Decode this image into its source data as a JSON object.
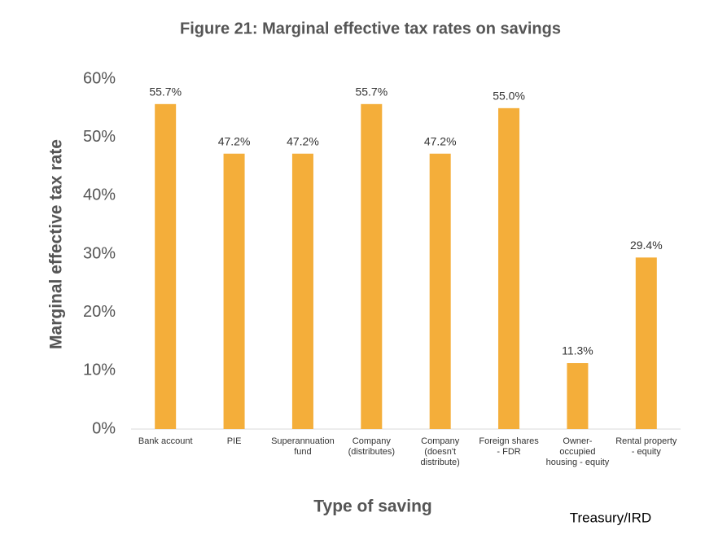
{
  "chart_data": {
    "type": "bar",
    "title": "Figure 21: Marginal effective tax rates on savings",
    "y_label": "Marginal effective tax rate",
    "x_label": "Type of saving",
    "source": "Treasury/IRD",
    "categories": [
      "Bank account",
      "PIE",
      "Superannuation fund",
      "Company (distributes)",
      "Company (doesn't distribute)",
      "Foreign shares - FDR",
      "Owner-occupied housing - equity",
      "Rental property - equity"
    ],
    "values": [
      55.7,
      47.2,
      47.2,
      55.7,
      47.2,
      55.0,
      11.3,
      29.4
    ],
    "value_labels": [
      "55.7%",
      "47.2%",
      "47.2%",
      "55.7%",
      "47.2%",
      "55.0%",
      "11.3%",
      "29.4%"
    ],
    "color": "#f4ae3a",
    "ylim": [
      0,
      60
    ],
    "yticks": [
      {
        "value": 0,
        "label": "0%"
      },
      {
        "value": 10,
        "label": "10%"
      },
      {
        "value": 20,
        "label": "20%"
      },
      {
        "value": 30,
        "label": "30%"
      },
      {
        "value": 40,
        "label": "40%"
      },
      {
        "value": 50,
        "label": "50%"
      },
      {
        "value": 60,
        "label": "60%"
      }
    ],
    "grid": false
  }
}
